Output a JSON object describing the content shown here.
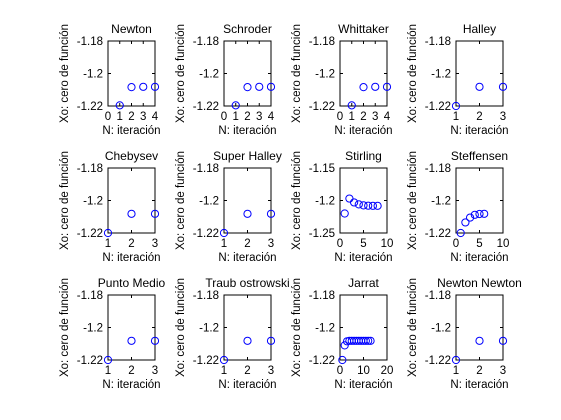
{
  "figure": {
    "ylabel": "Xo: cero de función",
    "xlabel": "N: iteración",
    "marker_color": "#0000ff"
  },
  "chart_data": [
    {
      "type": "scatter",
      "title": "Newton",
      "xlim": [
        0,
        4
      ],
      "ylim": [
        -1.22,
        -1.18
      ],
      "xticks": [
        0,
        1,
        2,
        3,
        4
      ],
      "xtick_labels": [
        "0",
        "1",
        "2",
        "3",
        "4"
      ],
      "yticks": [
        -1.22,
        -1.2,
        -1.18
      ],
      "ytick_labels": [
        "-1.22",
        "-1.2",
        "-1.18"
      ],
      "x": [
        1,
        2,
        3,
        4
      ],
      "y": [
        -1.2196,
        -1.2084,
        -1.2082,
        -1.2082
      ]
    },
    {
      "type": "scatter",
      "title": "Schroder",
      "xlim": [
        0,
        4
      ],
      "ylim": [
        -1.22,
        -1.18
      ],
      "xticks": [
        0,
        1,
        2,
        3,
        4
      ],
      "xtick_labels": [
        "0",
        "1",
        "2",
        "3",
        "4"
      ],
      "yticks": [
        -1.22,
        -1.2,
        -1.18
      ],
      "ytick_labels": [
        "-1.22",
        "-1.2",
        "-1.18"
      ],
      "x": [
        1,
        2,
        3,
        4
      ],
      "y": [
        -1.2196,
        -1.2084,
        -1.2082,
        -1.2082
      ]
    },
    {
      "type": "scatter",
      "title": "Whittaker",
      "xlim": [
        0,
        4
      ],
      "ylim": [
        -1.22,
        -1.18
      ],
      "xticks": [
        0,
        1,
        2,
        3,
        4
      ],
      "xtick_labels": [
        "0",
        "1",
        "2",
        "3",
        "4"
      ],
      "yticks": [
        -1.22,
        -1.2,
        -1.18
      ],
      "ytick_labels": [
        "-1.22",
        "-1.2",
        "-1.18"
      ],
      "x": [
        1,
        2,
        3,
        4
      ],
      "y": [
        -1.2196,
        -1.2084,
        -1.2082,
        -1.2082
      ]
    },
    {
      "type": "scatter",
      "title": "Halley",
      "xlim": [
        1,
        3
      ],
      "ylim": [
        -1.22,
        -1.18
      ],
      "xticks": [
        1,
        2,
        3
      ],
      "xtick_labels": [
        "1",
        "2",
        "3"
      ],
      "yticks": [
        -1.22,
        -1.2,
        -1.18
      ],
      "ytick_labels": [
        "-1.22",
        "-1.2",
        "-1.18"
      ],
      "x": [
        1,
        2,
        3
      ],
      "y": [
        -1.22,
        -1.2082,
        -1.2082
      ]
    },
    {
      "type": "scatter",
      "title": "Chebysev",
      "xlim": [
        1,
        3
      ],
      "ylim": [
        -1.22,
        -1.18
      ],
      "xticks": [
        1,
        2,
        3
      ],
      "xtick_labels": [
        "1",
        "2",
        "3"
      ],
      "yticks": [
        -1.22,
        -1.2,
        -1.18
      ],
      "ytick_labels": [
        "-1.22",
        "-1.2",
        "-1.18"
      ],
      "x": [
        1,
        2,
        3
      ],
      "y": [
        -1.22,
        -1.2082,
        -1.2082
      ]
    },
    {
      "type": "scatter",
      "title": "Super Halley",
      "xlim": [
        1,
        3
      ],
      "ylim": [
        -1.22,
        -1.18
      ],
      "xticks": [
        1,
        2,
        3
      ],
      "xtick_labels": [
        "1",
        "2",
        "3"
      ],
      "yticks": [
        -1.22,
        -1.2,
        -1.18
      ],
      "ytick_labels": [
        "-1.22",
        "-1.2",
        "-1.18"
      ],
      "x": [
        1,
        2,
        3
      ],
      "y": [
        -1.22,
        -1.2082,
        -1.2082
      ]
    },
    {
      "type": "scatter",
      "title": "Stirling",
      "xlim": [
        0,
        10
      ],
      "ylim": [
        -1.25,
        -1.15
      ],
      "xticks": [
        0,
        5,
        10
      ],
      "xtick_labels": [
        "0",
        "5",
        "10"
      ],
      "yticks": [
        -1.25,
        -1.2,
        -1.15
      ],
      "ytick_labels": [
        "-1.25",
        "-1.2",
        "-1.15"
      ],
      "x": [
        1,
        2,
        3,
        4,
        5,
        6,
        7,
        8
      ],
      "y": [
        -1.22,
        -1.197,
        -1.203,
        -1.206,
        -1.2075,
        -1.208,
        -1.2082,
        -1.2082
      ]
    },
    {
      "type": "scatter",
      "title": "Steffensen",
      "xlim": [
        0,
        10
      ],
      "ylim": [
        -1.22,
        -1.18
      ],
      "xticks": [
        0,
        5,
        10
      ],
      "xtick_labels": [
        "0",
        "5",
        "10"
      ],
      "yticks": [
        -1.22,
        -1.2,
        -1.18
      ],
      "ytick_labels": [
        "-1.22",
        "-1.2",
        "-1.18"
      ],
      "x": [
        1,
        2,
        3,
        4,
        5,
        6
      ],
      "y": [
        -1.22,
        -1.2135,
        -1.2105,
        -1.2088,
        -1.2083,
        -1.2082
      ]
    },
    {
      "type": "scatter",
      "title": "Punto Medio",
      "xlim": [
        1,
        3
      ],
      "ylim": [
        -1.22,
        -1.18
      ],
      "xticks": [
        1,
        2,
        3
      ],
      "xtick_labels": [
        "1",
        "2",
        "3"
      ],
      "yticks": [
        -1.22,
        -1.2,
        -1.18
      ],
      "ytick_labels": [
        "-1.22",
        "-1.2",
        "-1.18"
      ],
      "x": [
        1,
        2,
        3
      ],
      "y": [
        -1.22,
        -1.2082,
        -1.2082
      ]
    },
    {
      "type": "scatter",
      "title": "Traub ostrowski",
      "xlim": [
        1,
        3
      ],
      "ylim": [
        -1.22,
        -1.18
      ],
      "xticks": [
        1,
        2,
        3
      ],
      "xtick_labels": [
        "1",
        "2",
        "3"
      ],
      "yticks": [
        -1.22,
        -1.2,
        -1.18
      ],
      "ytick_labels": [
        "-1.22",
        "-1.2",
        "-1.18"
      ],
      "x": [
        1,
        2,
        3
      ],
      "y": [
        -1.22,
        -1.2082,
        -1.2082
      ]
    },
    {
      "type": "scatter",
      "title": "Jarrat",
      "xlim": [
        0,
        20
      ],
      "ylim": [
        -1.22,
        -1.18
      ],
      "xticks": [
        0,
        10,
        20
      ],
      "xtick_labels": [
        "0",
        "10",
        "20"
      ],
      "yticks": [
        -1.22,
        -1.2,
        -1.18
      ],
      "ytick_labels": [
        "-1.22",
        "-1.2",
        "-1.18"
      ],
      "x": [
        1,
        2,
        3,
        4,
        5,
        6,
        7,
        8,
        9,
        10,
        11,
        12,
        13
      ],
      "y": [
        -1.22,
        -1.211,
        -1.2085,
        -1.2082,
        -1.2082,
        -1.2082,
        -1.2082,
        -1.2082,
        -1.2082,
        -1.2082,
        -1.2082,
        -1.2082,
        -1.2082
      ]
    },
    {
      "type": "scatter",
      "title": "Newton Newton",
      "xlim": [
        1,
        3
      ],
      "ylim": [
        -1.22,
        -1.18
      ],
      "xticks": [
        1,
        2,
        3
      ],
      "xtick_labels": [
        "1",
        "2",
        "3"
      ],
      "yticks": [
        -1.22,
        -1.2,
        -1.18
      ],
      "ytick_labels": [
        "-1.22",
        "-1.2",
        "-1.18"
      ],
      "x": [
        1,
        2,
        3
      ],
      "y": [
        -1.22,
        -1.2082,
        -1.2082
      ]
    }
  ]
}
